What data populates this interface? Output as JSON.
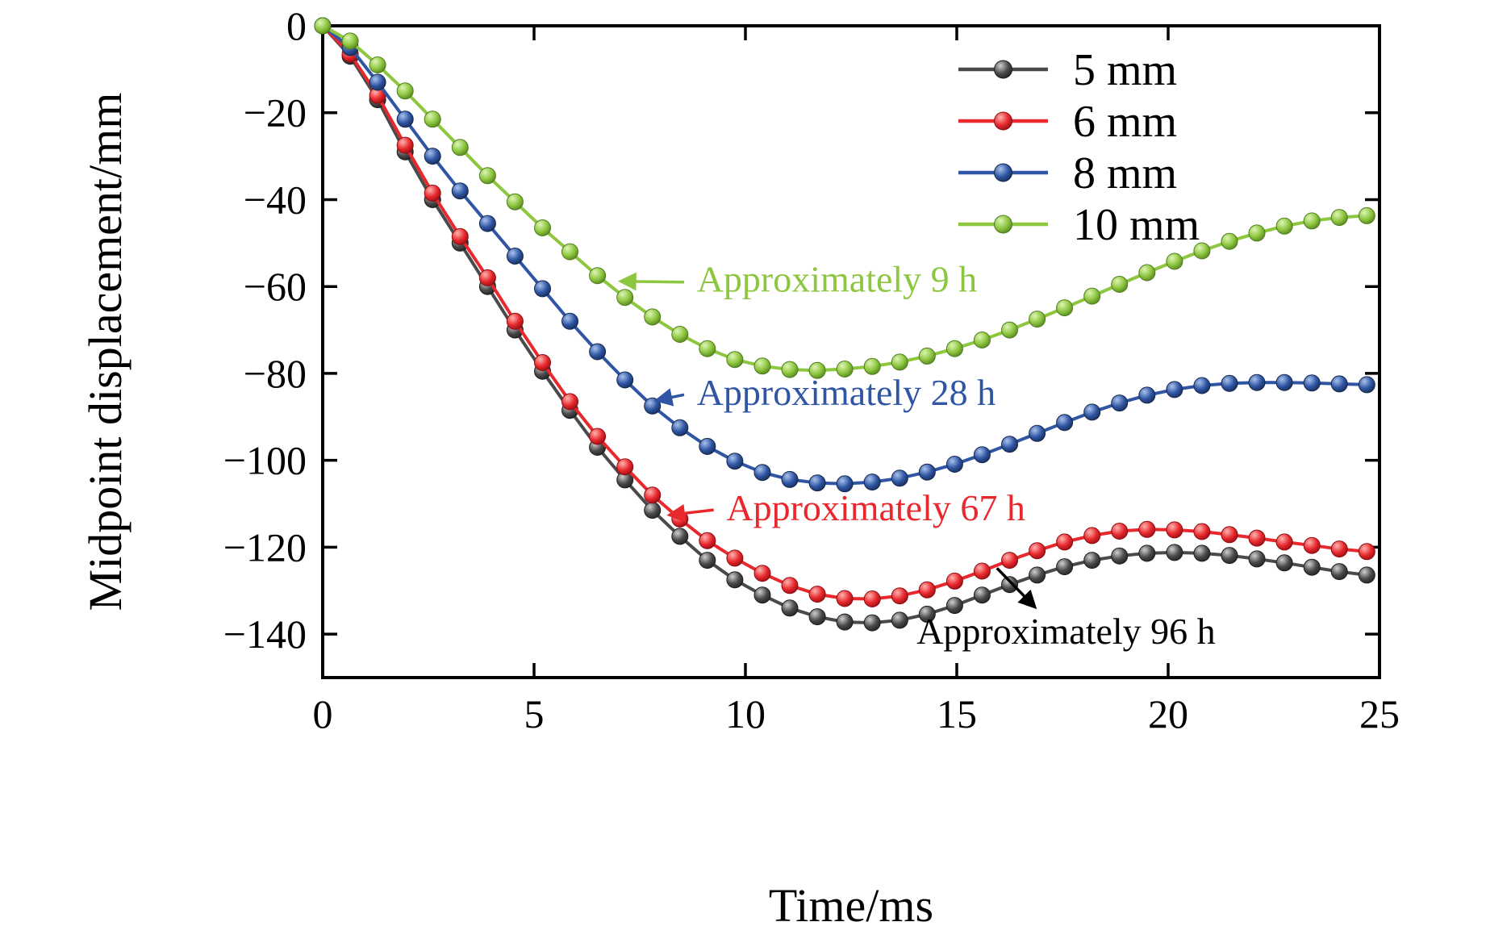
{
  "chart_data": {
    "type": "line",
    "title": "",
    "xlabel": "Time/ms",
    "ylabel": "Midpoint displacement/mm",
    "xlim": [
      0,
      25
    ],
    "ylim": [
      -150,
      0
    ],
    "grid": false,
    "legend_position": "top-right",
    "x_ticks": [
      0,
      5,
      10,
      15,
      20,
      25
    ],
    "x_tick_labels": [
      "0",
      "5",
      "10",
      "15",
      "20",
      "25"
    ],
    "y_ticks": [
      0,
      -20,
      -40,
      -60,
      -80,
      -100,
      -120,
      -140
    ],
    "y_tick_labels": [
      "0",
      "−20",
      "−40",
      "−60",
      "−80",
      "−100",
      "−120",
      "−140"
    ],
    "x": [
      0,
      0.65,
      1.3,
      1.95,
      2.6,
      3.25,
      3.9,
      4.55,
      5.2,
      5.85,
      6.5,
      7.15,
      7.8,
      8.45,
      9.1,
      9.75,
      10.4,
      11.05,
      11.7,
      12.35,
      13,
      13.65,
      14.3,
      14.95,
      15.6,
      16.25,
      16.9,
      17.55,
      18.2,
      18.85,
      19.5,
      20.15,
      20.8,
      21.45,
      22.1,
      22.75,
      23.4,
      24.05,
      24.7
    ],
    "series": [
      {
        "name": "5 mm",
        "color": "#4a4a4a",
        "marker_light": "#cfcfcf",
        "marker_dark": "#1f1f1f",
        "values": [
          0,
          -7,
          -17,
          -29,
          -40,
          -50,
          -60,
          -70,
          -79.5,
          -88.5,
          -97,
          -104.5,
          -111.5,
          -117.5,
          -123,
          -127.5,
          -131,
          -134,
          -136,
          -137.2,
          -137.4,
          -136.8,
          -135.4,
          -133.4,
          -131,
          -128.6,
          -126.4,
          -124.5,
          -123,
          -122,
          -121.4,
          -121.2,
          -121.4,
          -121.9,
          -122.7,
          -123.6,
          -124.6,
          -125.6,
          -126.4
        ]
      },
      {
        "name": "6 mm",
        "color": "#e8282d",
        "marker_light": "#ffb3b0",
        "marker_dark": "#8e0d12",
        "values": [
          0,
          -6.5,
          -16,
          -27.5,
          -38.5,
          -48.5,
          -58,
          -68,
          -77.5,
          -86.5,
          -94.5,
          -101.5,
          -108,
          -113.5,
          -118.5,
          -122.5,
          -126,
          -128.8,
          -130.8,
          -131.8,
          -131.9,
          -131.2,
          -129.8,
          -127.8,
          -125.5,
          -123,
          -120.8,
          -118.8,
          -117.3,
          -116.3,
          -115.9,
          -116,
          -116.4,
          -117.1,
          -117.9,
          -118.8,
          -119.6,
          -120.4,
          -121
        ]
      },
      {
        "name": "8 mm",
        "color": "#2f55a4",
        "marker_light": "#aac2ec",
        "marker_dark": "#16294f",
        "values": [
          0,
          -5,
          -13,
          -21.5,
          -30,
          -38,
          -45.5,
          -53,
          -60.5,
          -68,
          -75,
          -81.5,
          -87.5,
          -92.5,
          -96.8,
          -100.2,
          -102.8,
          -104.4,
          -105.2,
          -105.4,
          -105,
          -104.1,
          -102.7,
          -100.9,
          -98.7,
          -96.3,
          -93.8,
          -91.3,
          -88.9,
          -86.8,
          -85,
          -83.7,
          -82.8,
          -82.3,
          -82.1,
          -82.1,
          -82.2,
          -82.4,
          -82.6
        ]
      },
      {
        "name": "10 mm",
        "color": "#8dc63f",
        "marker_light": "#def5b5",
        "marker_dark": "#4f7d1d",
        "values": [
          0,
          -3.5,
          -9,
          -15,
          -21.5,
          -28,
          -34.5,
          -40.5,
          -46.5,
          -52,
          -57.5,
          -62.5,
          -67,
          -71,
          -74.3,
          -76.8,
          -78.3,
          -79.1,
          -79.3,
          -79,
          -78.4,
          -77.4,
          -76,
          -74.3,
          -72.3,
          -70,
          -67.5,
          -64.9,
          -62.2,
          -59.5,
          -56.8,
          -54.2,
          -51.8,
          -49.6,
          -47.7,
          -46.1,
          -44.9,
          -44.1,
          -43.7
        ]
      }
    ],
    "annotations": [
      {
        "text": "Approximately 9 h",
        "color": "#8dc63f",
        "text_xy": [
          8.85,
          -58.2
        ],
        "arrow_from": [
          8.55,
          -59.0
        ],
        "arrow_to": [
          7.05,
          -58.8
        ]
      },
      {
        "text": "Approximately 28 h",
        "color": "#2f55a4",
        "text_xy": [
          8.85,
          -84.3
        ],
        "arrow_from": [
          8.55,
          -84.9
        ],
        "arrow_to": [
          7.9,
          -86.2
        ]
      },
      {
        "text": "Approximately 67 h",
        "color": "#e8282d",
        "text_xy": [
          9.55,
          -110.8
        ],
        "arrow_from": [
          9.25,
          -111.4
        ],
        "arrow_to": [
          8.2,
          -112.6
        ]
      },
      {
        "text": "Approximately 96 h",
        "color": "#000000",
        "text_xy": [
          14.05,
          -139.2
        ],
        "arrow_from": [
          15.95,
          -124.8
        ],
        "arrow_to": [
          16.85,
          -133.8
        ]
      }
    ]
  }
}
